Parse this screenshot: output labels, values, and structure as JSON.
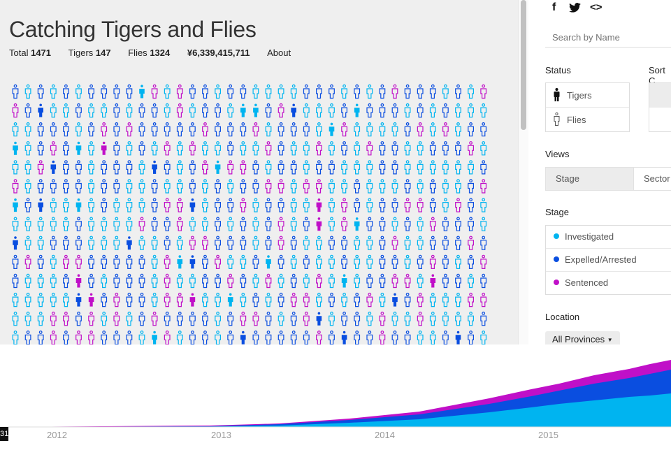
{
  "header": {
    "title": "Catching Tigers and Flies",
    "stats": [
      {
        "label": "Total",
        "value": "1471"
      },
      {
        "label": "Tigers",
        "value": "147"
      },
      {
        "label": "Flies",
        "value": "1324"
      },
      {
        "label": "",
        "value": "¥6,339,415,711"
      }
    ],
    "about": "About"
  },
  "colors": {
    "investigated": "#00b4f0",
    "expelled": "#0a4ee0",
    "sentenced": "#c010c8",
    "tiger": "#111111",
    "fly": "#666666"
  },
  "share": {
    "facebook": "f",
    "twitter": "twitter-icon",
    "embed": "<>"
  },
  "search": {
    "placeholder": "Search by Name"
  },
  "status": {
    "label": "Status",
    "options": [
      {
        "label": "Tigers",
        "icon": "tiger-solid-icon"
      },
      {
        "label": "Flies",
        "icon": "fly-outline-icon"
      }
    ]
  },
  "sort": {
    "label": "Sort C"
  },
  "views": {
    "label": "Views",
    "options": [
      "Stage",
      "Sector"
    ]
  },
  "stage": {
    "label": "Stage",
    "options": [
      {
        "label": "Investigated",
        "color": "#00b4f0"
      },
      {
        "label": "Expelled/Arrested",
        "color": "#0a4ee0"
      },
      {
        "label": "Sentenced",
        "color": "#c010c8"
      }
    ]
  },
  "location": {
    "label": "Location",
    "selected": "All Provinces"
  },
  "timeline": {
    "ticks": [
      "2012",
      "2013",
      "2014",
      "2015"
    ],
    "marker": "31"
  }
}
